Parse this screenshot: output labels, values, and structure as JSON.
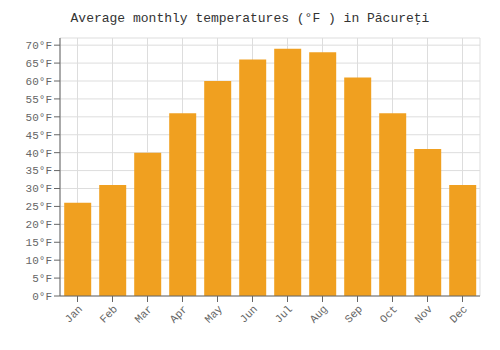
{
  "chart_data": {
    "type": "bar",
    "title": "Average monthly temperatures (°F ) in Păcureţi",
    "categories": [
      "Jan",
      "Feb",
      "Mar",
      "Apr",
      "May",
      "Jun",
      "Jul",
      "Aug",
      "Sep",
      "Oct",
      "Nov",
      "Dec"
    ],
    "values": [
      26,
      31,
      40,
      51,
      60,
      66,
      69,
      68,
      61,
      51,
      41,
      31
    ],
    "color": "#F0A020",
    "ylim": [
      0,
      72
    ],
    "yticks": [
      {
        "value": 0,
        "label": "0°F"
      },
      {
        "value": 5,
        "label": "5°F"
      },
      {
        "value": 10,
        "label": "10°F"
      },
      {
        "value": 15,
        "label": "15°F"
      },
      {
        "value": 20,
        "label": "20°F"
      },
      {
        "value": 25,
        "label": "25°F"
      },
      {
        "value": 30,
        "label": "30°F"
      },
      {
        "value": 35,
        "label": "35°F"
      },
      {
        "value": 40,
        "label": "40°F"
      },
      {
        "value": 45,
        "label": "45°F"
      },
      {
        "value": 50,
        "label": "50°F"
      },
      {
        "value": 55,
        "label": "55°F"
      },
      {
        "value": 60,
        "label": "60°F"
      },
      {
        "value": 65,
        "label": "65°F"
      },
      {
        "value": 70,
        "label": "70°F"
      }
    ],
    "grid": true
  }
}
